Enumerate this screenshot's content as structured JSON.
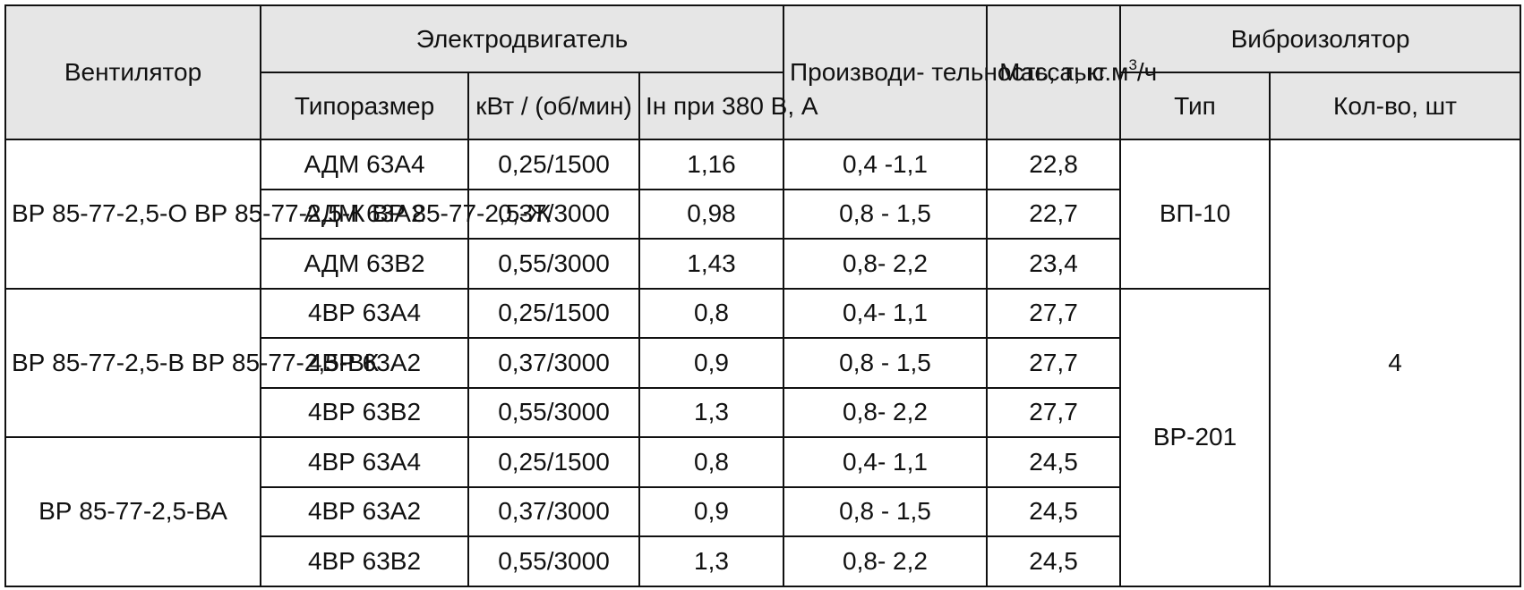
{
  "header": {
    "fan": "Вентилятор",
    "motor": "Электродвигатель",
    "size": "Типоразмер",
    "power": "кВт /\n(об/мин)",
    "current": "Iн при 380\nВ, А",
    "capacity_pre": "Производи-\nтельность,\nтыс.м",
    "capacity_sup": "3",
    "capacity_post": "/ч",
    "mass": "Масса,\nкг",
    "isolator": "Виброизолятор",
    "iso_type": "Тип",
    "iso_qty": "Кол-во, шт"
  },
  "groups": [
    {
      "fan": "ВР 85-77-2,5-О\nВР 85-77-2,5-К\nВР 85-77-2,5-Ж",
      "rows": [
        {
          "size": "АДМ 63А4",
          "power": "0,25/1500",
          "current": "1,16",
          "capacity": "0,4 -1,1",
          "mass": "22,8"
        },
        {
          "size": "АДМ 63А2",
          "power": "0,37/3000",
          "current": "0,98",
          "capacity": "0,8 - 1,5",
          "mass": "22,7"
        },
        {
          "size": "АДМ 63В2",
          "power": "0,55/3000",
          "current": "1,43",
          "capacity": "0,8- 2,2",
          "mass": "23,4"
        }
      ]
    },
    {
      "fan": "ВР 85-77-2,5-В\nВР 85-77-2,5-ВК",
      "rows": [
        {
          "size": "4ВР 63А4",
          "power": "0,25/1500",
          "current": "0,8",
          "capacity": "0,4- 1,1",
          "mass": "27,7"
        },
        {
          "size": "4ВР 63А2",
          "power": "0,37/3000",
          "current": "0,9",
          "capacity": "0,8 - 1,5",
          "mass": "27,7"
        },
        {
          "size": "4ВР 63В2",
          "power": "0,55/3000",
          "current": "1,3",
          "capacity": "0,8- 2,2",
          "mass": "27,7"
        }
      ]
    },
    {
      "fan": "ВР 85-77-2,5-ВА",
      "rows": [
        {
          "size": "4ВР 63А4",
          "power": "0,25/1500",
          "current": "0,8",
          "capacity": "0,4- 1,1",
          "mass": "24,5"
        },
        {
          "size": "4ВР 63А2",
          "power": "0,37/3000",
          "current": "0,9",
          "capacity": "0,8 - 1,5",
          "mass": "24,5"
        },
        {
          "size": "4ВР 63В2",
          "power": "0,55/3000",
          "current": "1,3",
          "capacity": "0,8- 2,2",
          "mass": "24,5"
        }
      ]
    }
  ],
  "isolators": {
    "type_a": "ВП-10",
    "type_b": "ВР-201",
    "quantity": "4"
  }
}
